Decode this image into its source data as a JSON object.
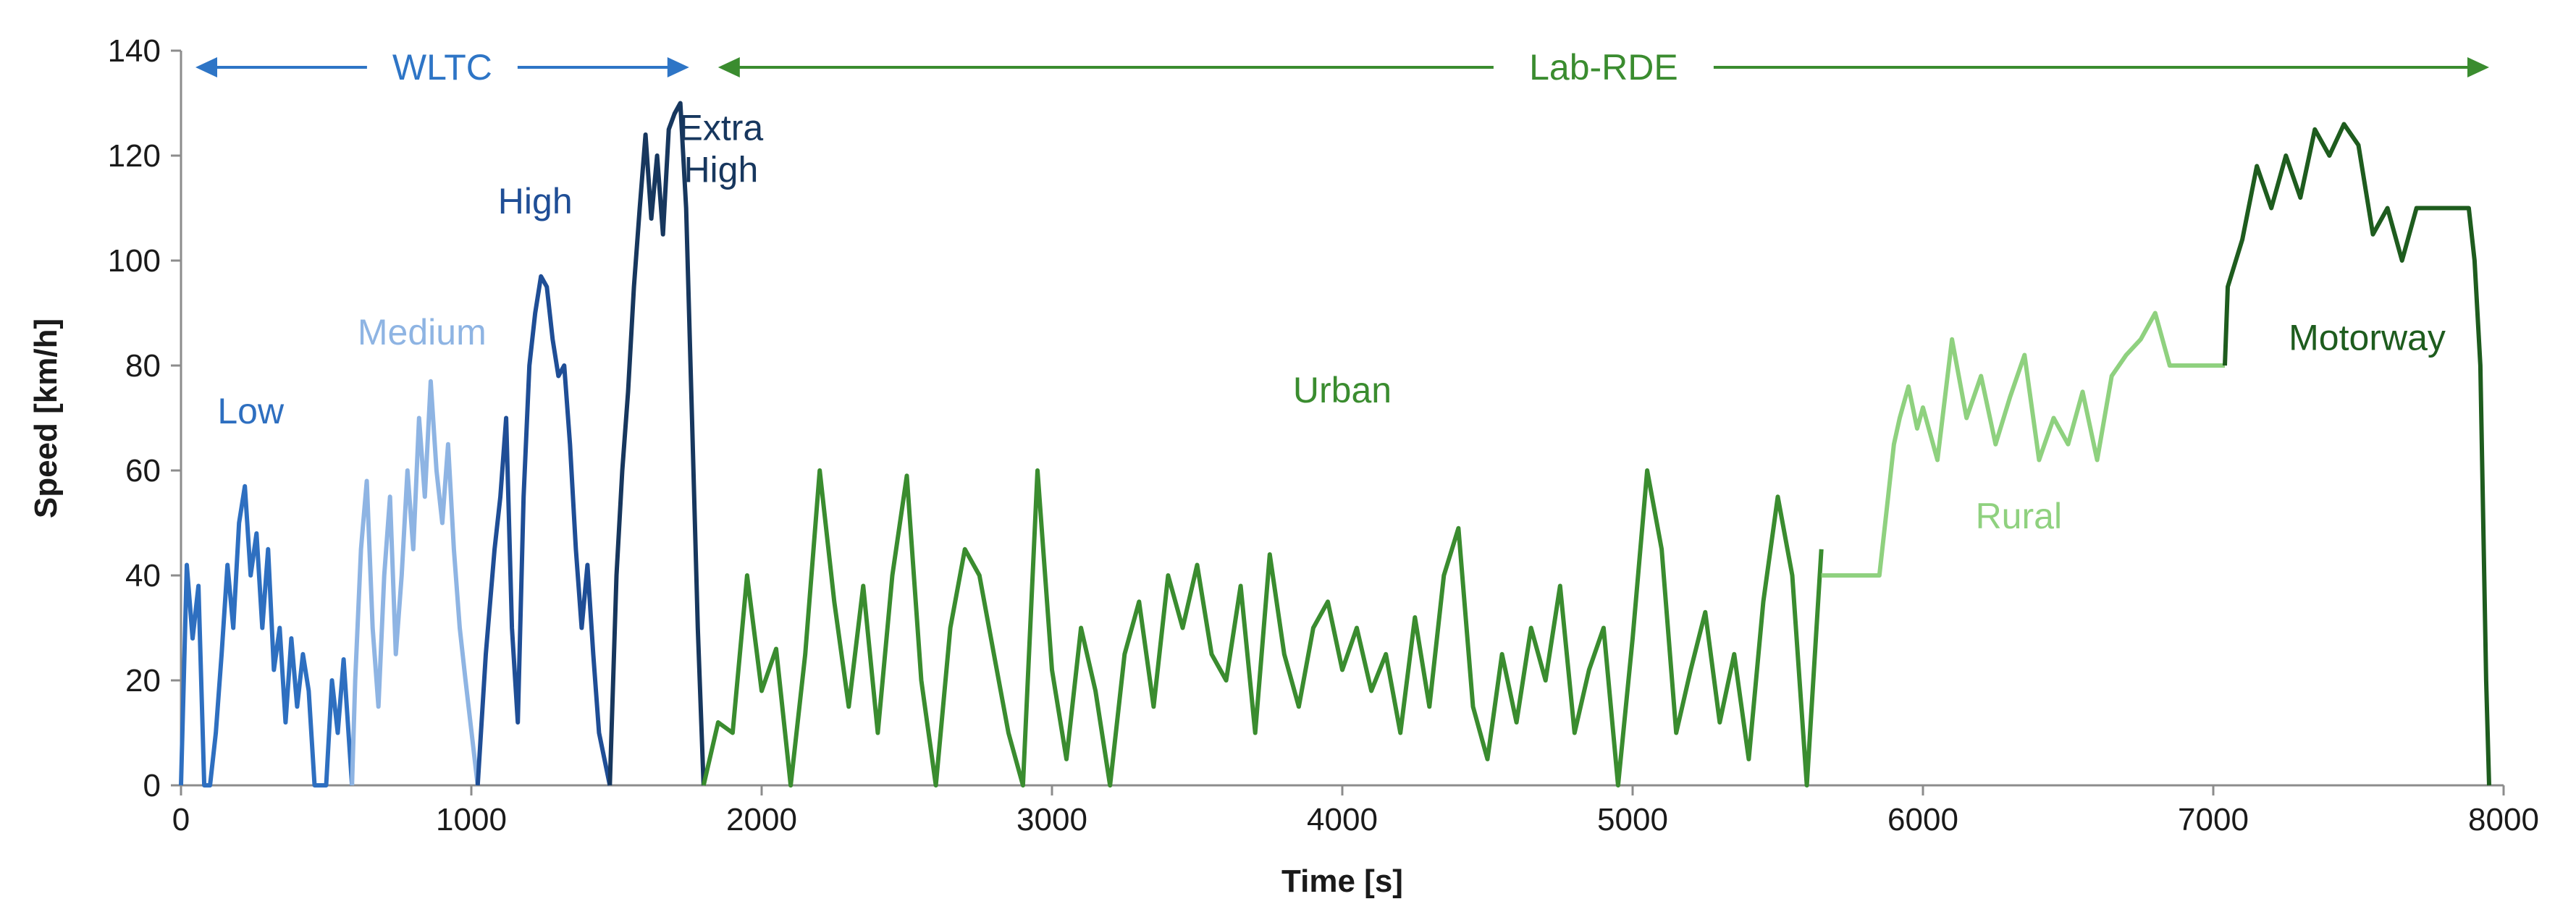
{
  "chart_data": {
    "type": "line",
    "title": "",
    "xlabel": "Time [s]",
    "ylabel": "Speed [km/h]",
    "xlim": [
      0,
      8000
    ],
    "ylim": [
      0,
      140
    ],
    "xticks": [
      0,
      1000,
      2000,
      3000,
      4000,
      5000,
      6000,
      7000,
      8000
    ],
    "yticks": [
      0,
      20,
      40,
      60,
      80,
      100,
      120,
      140
    ],
    "grid": false,
    "legend": "none",
    "cycles": [
      {
        "label": "WLTC",
        "x_start": 0,
        "x_end": 1800,
        "color": "#2e75c6"
      },
      {
        "label": "Lab-RDE",
        "x_start": 1800,
        "x_end": 8000,
        "color": "#3a8c2f"
      }
    ],
    "phase_labels": [
      {
        "id": "low",
        "lines": [
          "Low"
        ],
        "x": 240,
        "y": 69,
        "color": "#2e6fc0"
      },
      {
        "id": "medium",
        "lines": [
          "Medium"
        ],
        "x": 830,
        "y": 84,
        "color": "#8eb4e3"
      },
      {
        "id": "high",
        "lines": [
          "High"
        ],
        "x": 1220,
        "y": 109,
        "color": "#1f4e96"
      },
      {
        "id": "extra-high",
        "lines": [
          "Extra",
          "High"
        ],
        "x": 1860,
        "y": 123,
        "color": "#17375e"
      },
      {
        "id": "urban",
        "lines": [
          "Urban"
        ],
        "x": 4000,
        "y": 73,
        "color": "#3a8c2f"
      },
      {
        "id": "rural",
        "lines": [
          "Rural"
        ],
        "x": 6330,
        "y": 49,
        "color": "#8fd17f"
      },
      {
        "id": "motorway",
        "lines": [
          "Motorway"
        ],
        "x": 7530,
        "y": 83,
        "color": "#1e5c1e"
      }
    ],
    "series": [
      {
        "name": "Low",
        "color": "#2e6fc0",
        "x": [
          0,
          20,
          40,
          60,
          80,
          100,
          120,
          140,
          160,
          180,
          200,
          220,
          240,
          260,
          280,
          300,
          320,
          340,
          360,
          380,
          400,
          420,
          440,
          460,
          480,
          500,
          520,
          540,
          560,
          589
        ],
        "y": [
          0,
          42,
          28,
          38,
          0,
          0,
          10,
          25,
          42,
          30,
          50,
          57,
          40,
          48,
          30,
          45,
          22,
          30,
          12,
          28,
          15,
          25,
          18,
          0,
          0,
          0,
          20,
          10,
          24,
          0
        ]
      },
      {
        "name": "Medium",
        "color": "#8eb4e3",
        "x": [
          589,
          600,
          620,
          640,
          660,
          680,
          700,
          720,
          740,
          760,
          780,
          800,
          820,
          840,
          860,
          880,
          900,
          920,
          940,
          960,
          980,
          1022
        ],
        "y": [
          0,
          20,
          45,
          58,
          30,
          15,
          40,
          55,
          25,
          40,
          60,
          45,
          70,
          55,
          77,
          60,
          50,
          65,
          45,
          30,
          20,
          0
        ]
      },
      {
        "name": "High",
        "color": "#1f4e96",
        "x": [
          1022,
          1050,
          1080,
          1100,
          1120,
          1140,
          1160,
          1180,
          1200,
          1220,
          1240,
          1260,
          1280,
          1300,
          1320,
          1340,
          1360,
          1380,
          1400,
          1420,
          1440,
          1477
        ],
        "y": [
          0,
          25,
          45,
          55,
          70,
          30,
          12,
          55,
          80,
          90,
          97,
          95,
          85,
          78,
          80,
          65,
          45,
          30,
          42,
          25,
          10,
          0
        ]
      },
      {
        "name": "Extra High",
        "color": "#17375e",
        "x": [
          1477,
          1500,
          1520,
          1540,
          1560,
          1580,
          1600,
          1620,
          1640,
          1660,
          1680,
          1700,
          1720,
          1740,
          1760,
          1780,
          1800
        ],
        "y": [
          0,
          40,
          60,
          75,
          95,
          110,
          124,
          108,
          120,
          105,
          125,
          128,
          130,
          110,
          70,
          30,
          0
        ]
      },
      {
        "name": "Urban",
        "color": "#3a8c2f",
        "x": [
          1800,
          1850,
          1900,
          1950,
          2000,
          2050,
          2100,
          2150,
          2200,
          2250,
          2300,
          2350,
          2400,
          2450,
          2500,
          2550,
          2600,
          2650,
          2700,
          2750,
          2800,
          2850,
          2900,
          2950,
          3000,
          3050,
          3100,
          3150,
          3200,
          3250,
          3300,
          3350,
          3400,
          3450,
          3500,
          3550,
          3600,
          3650,
          3700,
          3750,
          3800,
          3850,
          3900,
          3950,
          4000,
          4050,
          4100,
          4150,
          4200,
          4250,
          4300,
          4350,
          4400,
          4450,
          4500,
          4550,
          4600,
          4650,
          4700,
          4750,
          4800,
          4850,
          4900,
          4950,
          5000,
          5050,
          5100,
          5150,
          5200,
          5250,
          5300,
          5350,
          5400,
          5450,
          5500,
          5550,
          5600,
          5650
        ],
        "y": [
          0,
          12,
          10,
          40,
          18,
          26,
          0,
          25,
          60,
          35,
          15,
          38,
          10,
          40,
          59,
          20,
          0,
          30,
          45,
          40,
          25,
          10,
          0,
          60,
          22,
          5,
          30,
          18,
          0,
          25,
          35,
          15,
          40,
          30,
          42,
          25,
          20,
          38,
          10,
          44,
          25,
          15,
          30,
          35,
          22,
          30,
          18,
          25,
          10,
          32,
          15,
          40,
          49,
          15,
          5,
          25,
          12,
          30,
          20,
          38,
          10,
          22,
          30,
          0,
          28,
          60,
          45,
          10,
          22,
          33,
          12,
          25,
          5,
          35,
          55,
          40,
          0,
          45
        ]
      },
      {
        "name": "Rural",
        "color": "#8fd17f",
        "x": [
          5650,
          5700,
          5750,
          5800,
          5850,
          5880,
          5900,
          5920,
          5950,
          5980,
          6000,
          6050,
          6100,
          6150,
          6200,
          6250,
          6300,
          6350,
          6400,
          6450,
          6500,
          6550,
          6600,
          6650,
          6700,
          6750,
          6800,
          6850,
          6900,
          6950,
          7000,
          7040
        ],
        "y": [
          40,
          40,
          40,
          40,
          40,
          55,
          65,
          70,
          76,
          68,
          72,
          62,
          85,
          70,
          78,
          65,
          74,
          82,
          62,
          70,
          65,
          75,
          62,
          78,
          82,
          85,
          90,
          80,
          80,
          80,
          80,
          80
        ]
      },
      {
        "name": "Motorway",
        "color": "#1e5c1e",
        "x": [
          7040,
          7050,
          7100,
          7150,
          7200,
          7250,
          7300,
          7350,
          7400,
          7450,
          7500,
          7550,
          7600,
          7650,
          7700,
          7750,
          7800,
          7850,
          7880,
          7900,
          7920,
          7940,
          7950
        ],
        "y": [
          80,
          95,
          104,
          118,
          110,
          120,
          112,
          125,
          120,
          126,
          122,
          105,
          110,
          100,
          110,
          110,
          110,
          110,
          110,
          100,
          80,
          20,
          0
        ]
      }
    ]
  }
}
